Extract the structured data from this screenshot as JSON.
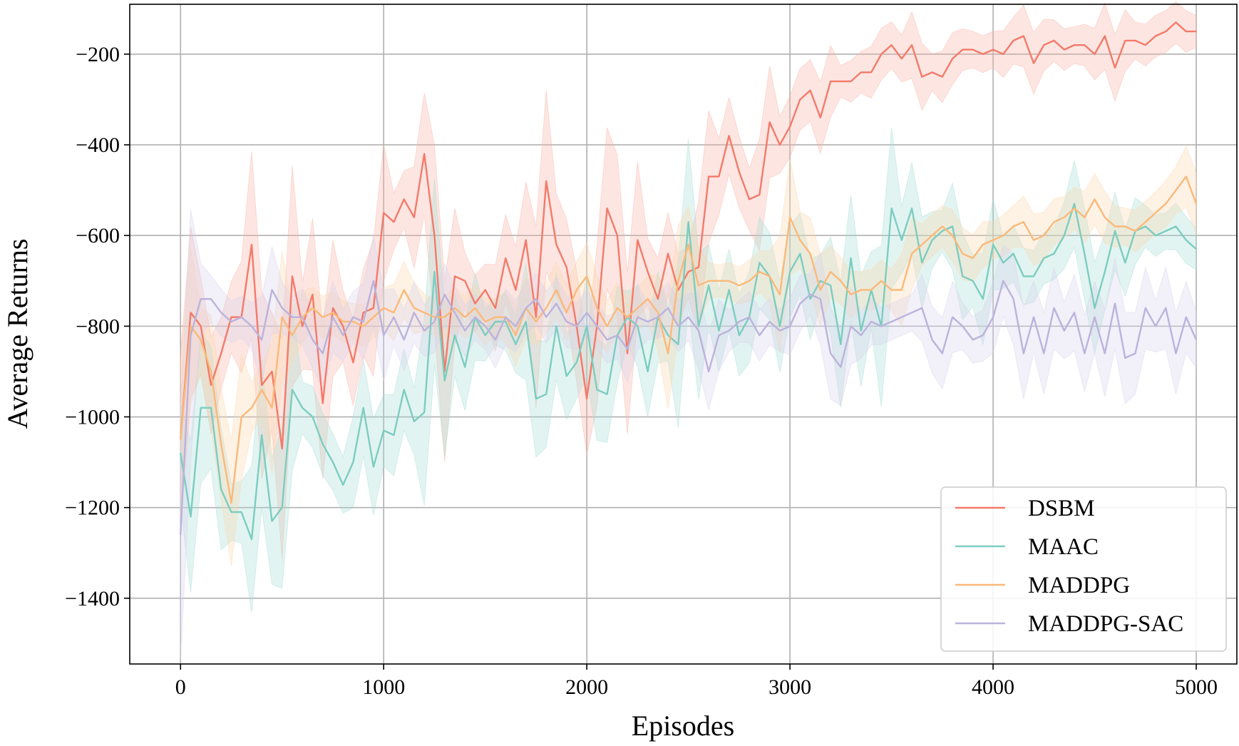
{
  "chart_data": {
    "type": "line",
    "xlabel": "Episodes",
    "ylabel": "Average Returns",
    "xlim": [
      -250,
      5200
    ],
    "ylim": [
      -1545,
      -90
    ],
    "xticks": [
      0,
      1000,
      2000,
      3000,
      4000,
      5000
    ],
    "yticks": [
      -200,
      -400,
      -600,
      -800,
      -1000,
      -1200,
      -1400
    ],
    "xtick_labels": [
      "0",
      "1000",
      "2000",
      "3000",
      "4000",
      "5000"
    ],
    "ytick_labels": [
      "−200",
      "−400",
      "−600",
      "−800",
      "−1000",
      "−1200",
      "−1400"
    ],
    "grid": true,
    "legend_position": "lower-right",
    "x_step": 50,
    "series": [
      {
        "name": "DSBM",
        "color": "#f47a6a",
        "band_color": "#f9b0a5",
        "values": [
          -1050,
          -770,
          -800,
          -930,
          -860,
          -780,
          -780,
          -620,
          -930,
          -900,
          -1070,
          -690,
          -800,
          -730,
          -970,
          -760,
          -800,
          -880,
          -770,
          -760,
          -550,
          -570,
          -520,
          -560,
          -420,
          -600,
          -900,
          -690,
          -700,
          -750,
          -720,
          -760,
          -650,
          -720,
          -610,
          -780,
          -480,
          -620,
          -670,
          -800,
          -960,
          -800,
          -540,
          -600,
          -860,
          -610,
          -680,
          -740,
          -640,
          -720,
          -680,
          -670,
          -470,
          -470,
          -380,
          -460,
          -520,
          -510,
          -350,
          -400,
          -360,
          -300,
          -280,
          -340,
          -260,
          -260,
          -260,
          -240,
          -240,
          -200,
          -180,
          -210,
          -180,
          -250,
          -240,
          -250,
          -210,
          -190,
          -190,
          -200,
          -190,
          -200,
          -170,
          -160,
          -220,
          -180,
          -170,
          -190,
          -180,
          -180,
          -200,
          -160,
          -230,
          -170,
          -170,
          -180,
          -160,
          -150,
          -130,
          -150,
          -150
        ]
      },
      {
        "name": "MAAC",
        "color": "#7ccdc0",
        "band_color": "#a6ddd4",
        "values": [
          -1080,
          -1220,
          -980,
          -980,
          -1160,
          -1210,
          -1210,
          -1270,
          -1040,
          -1230,
          -1200,
          -940,
          -980,
          -1000,
          -1060,
          -1100,
          -1150,
          -1100,
          -980,
          -1110,
          -1030,
          -1040,
          -940,
          -1010,
          -990,
          -680,
          -920,
          -820,
          -890,
          -780,
          -820,
          -790,
          -790,
          -840,
          -790,
          -960,
          -950,
          -800,
          -910,
          -880,
          -800,
          -940,
          -950,
          -820,
          -780,
          -800,
          -900,
          -780,
          -820,
          -840,
          -570,
          -800,
          -710,
          -810,
          -720,
          -820,
          -780,
          -660,
          -690,
          -800,
          -680,
          -640,
          -740,
          -700,
          -710,
          -840,
          -650,
          -810,
          -720,
          -800,
          -540,
          -610,
          -540,
          -660,
          -610,
          -590,
          -580,
          -690,
          -700,
          -740,
          -620,
          -660,
          -640,
          -690,
          -690,
          -650,
          -640,
          -600,
          -530,
          -640,
          -760,
          -680,
          -590,
          -660,
          -590,
          -580,
          -600,
          -590,
          -580,
          -610,
          -630
        ]
      },
      {
        "name": "MADDPG",
        "color": "#fbb979",
        "band_color": "#fdd8ad",
        "values": [
          -1050,
          -800,
          -830,
          -900,
          -1060,
          -1190,
          -1000,
          -980,
          -940,
          -980,
          -780,
          -820,
          -780,
          -760,
          -780,
          -770,
          -790,
          -790,
          -800,
          -780,
          -760,
          -770,
          -720,
          -760,
          -770,
          -780,
          -780,
          -760,
          -780,
          -760,
          -790,
          -780,
          -780,
          -820,
          -760,
          -790,
          -760,
          -720,
          -770,
          -720,
          -690,
          -760,
          -800,
          -760,
          -780,
          -760,
          -740,
          -770,
          -860,
          -700,
          -620,
          -710,
          -700,
          -700,
          -700,
          -710,
          -700,
          -680,
          -690,
          -730,
          -560,
          -610,
          -640,
          -720,
          -680,
          -700,
          -730,
          -720,
          -720,
          -700,
          -720,
          -720,
          -640,
          -620,
          -600,
          -580,
          -600,
          -640,
          -650,
          -620,
          -610,
          -600,
          -580,
          -570,
          -610,
          -600,
          -570,
          -560,
          -540,
          -560,
          -520,
          -560,
          -580,
          -580,
          -590,
          -570,
          -550,
          -530,
          -500,
          -470,
          -530
        ]
      },
      {
        "name": "MADDPG-SAC",
        "color": "#bbb3dc",
        "band_color": "#d6d0ec",
        "values": [
          -1260,
          -820,
          -740,
          -740,
          -770,
          -790,
          -780,
          -800,
          -830,
          -720,
          -760,
          -780,
          -780,
          -830,
          -860,
          -780,
          -820,
          -780,
          -790,
          -700,
          -820,
          -780,
          -830,
          -770,
          -810,
          -790,
          -730,
          -770,
          -810,
          -780,
          -800,
          -830,
          -780,
          -800,
          -760,
          -740,
          -780,
          -750,
          -790,
          -800,
          -770,
          -800,
          -830,
          -820,
          -850,
          -780,
          -790,
          -780,
          -760,
          -800,
          -780,
          -810,
          -900,
          -820,
          -810,
          -790,
          -780,
          -820,
          -790,
          -810,
          -800,
          -750,
          -730,
          -740,
          -860,
          -890,
          -800,
          -820,
          -790,
          -800,
          -790,
          -780,
          -770,
          -760,
          -830,
          -860,
          -780,
          -800,
          -830,
          -820,
          -780,
          -700,
          -740,
          -860,
          -780,
          -860,
          -760,
          -810,
          -770,
          -860,
          -780,
          -860,
          -750,
          -870,
          -860,
          -760,
          -800,
          -760,
          -860,
          -780,
          -830
        ]
      }
    ]
  }
}
